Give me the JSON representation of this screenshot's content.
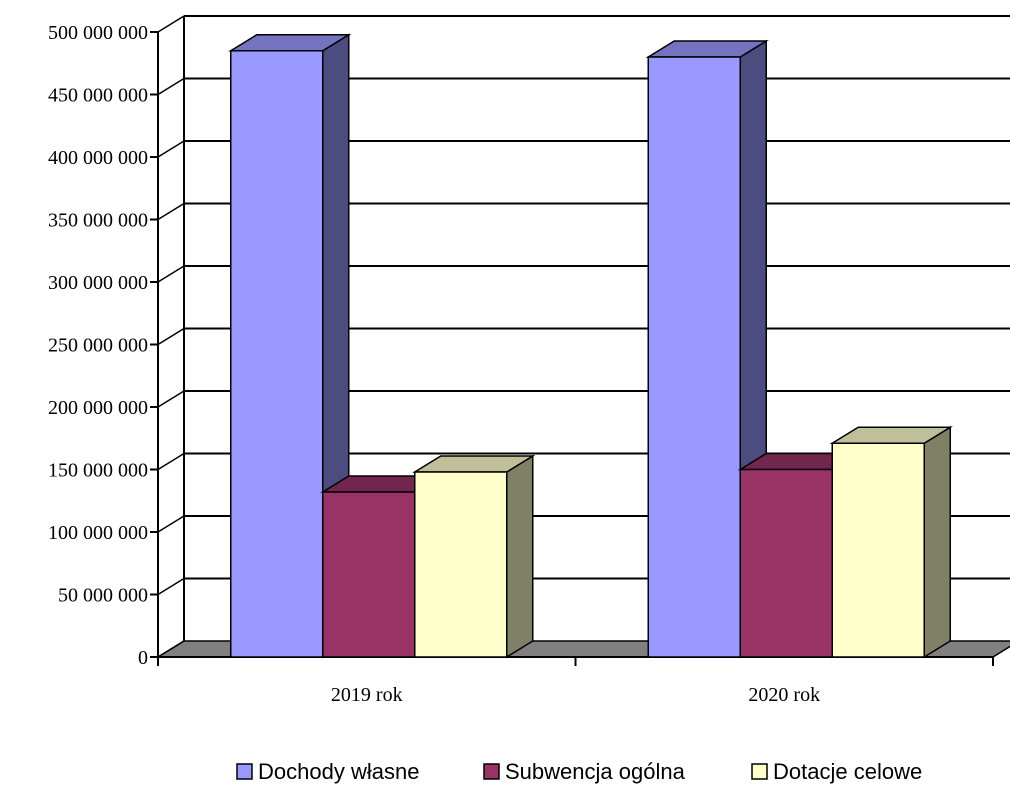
{
  "chart_data": {
    "type": "bar",
    "title": "",
    "xlabel": "",
    "ylabel": "",
    "categories": [
      "2019 rok",
      "2020 rok"
    ],
    "series": [
      {
        "name": "Dochody własne",
        "values": [
          485000000,
          480000000
        ],
        "color": "#9999FF",
        "side_color": "#4C4C80",
        "top_color": "#7373BF"
      },
      {
        "name": "Subwencja ogólna",
        "values": [
          132000000,
          150000000
        ],
        "color": "#993366",
        "side_color": "#4D1A33",
        "top_color": "#73264D"
      },
      {
        "name": "Dotacje celowe",
        "values": [
          148000000,
          171000000
        ],
        "color": "#FFFFCC",
        "side_color": "#808066",
        "top_color": "#BFBF99"
      }
    ],
    "ylim": [
      0,
      500000000
    ],
    "yticks": [
      0,
      50000000,
      100000000,
      150000000,
      200000000,
      250000000,
      300000000,
      350000000,
      400000000,
      450000000,
      500000000
    ],
    "ytick_labels": [
      "0",
      "50 000 000",
      "100 000 000",
      "150 000 000",
      "200 000 000",
      "250 000 000",
      "300 000 000",
      "350 000 000",
      "400 000 000",
      "450 000 000",
      "500 000 000"
    ],
    "grid": true,
    "legend_position": "bottom",
    "floor_color": "#808080"
  }
}
